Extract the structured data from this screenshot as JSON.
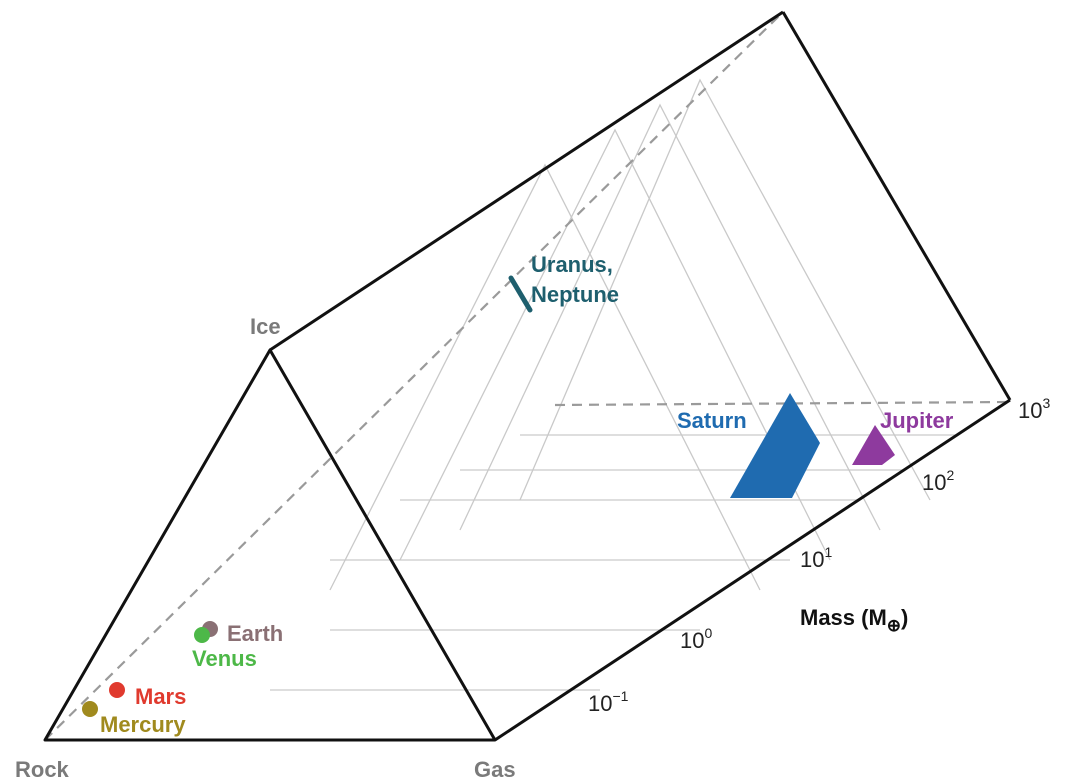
{
  "corners": {
    "rock": "Rock",
    "gas": "Gas",
    "ice": "Ice"
  },
  "mass_axis": {
    "title_prefix": "Mass (M",
    "title_symbol": "⊕",
    "title_suffix": ")",
    "ticks": [
      {
        "base": "10",
        "exp": "−1"
      },
      {
        "base": "10",
        "exp": "0"
      },
      {
        "base": "10",
        "exp": "1"
      },
      {
        "base": "10",
        "exp": "2"
      },
      {
        "base": "10",
        "exp": "3"
      }
    ]
  },
  "planets": {
    "mercury": {
      "label": "Mercury",
      "color": "#a08a1e"
    },
    "mars": {
      "label": "Mars",
      "color": "#e03a2e"
    },
    "venus": {
      "label": "Venus",
      "color": "#4db848"
    },
    "earth": {
      "label": "Earth",
      "color": "#8a7074"
    },
    "uranus_neptune": {
      "label_line1": "Uranus,",
      "label_line2": "Neptune",
      "color": "#1e5f6e"
    },
    "saturn": {
      "label": "Saturn",
      "color": "#1f6bb0"
    },
    "jupiter": {
      "label": "Jupiter",
      "color": "#8e3a9e"
    }
  }
}
